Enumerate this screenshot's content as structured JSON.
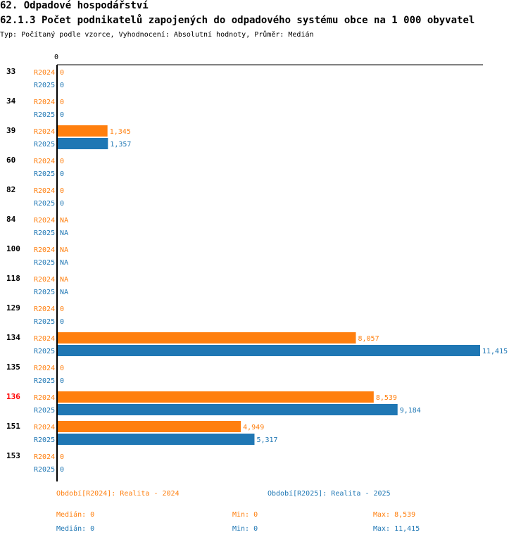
{
  "header": {
    "title": "62. Odpadové hospodářství",
    "subtitle": "62.1.3 Počet podnikatelů zapojených do odpadového systému obce na 1 000 obyvatel",
    "meta": "Typ: Počítaný podle vzorce, Vyhodnocení: Absolutní hodnoty, Průměr: Medián"
  },
  "chart_data": {
    "type": "bar",
    "orientation": "horizontal",
    "x_tick_labels": [
      "0"
    ],
    "xlim": [
      0,
      11415
    ],
    "highlight_color": "#ff0000",
    "series": [
      {
        "name": "R2024",
        "color": "#ff7f0e"
      },
      {
        "name": "R2025",
        "color": "#1f77b4"
      }
    ],
    "groups": [
      {
        "category": "33",
        "highlight": false,
        "values": [
          0,
          0
        ],
        "labels": [
          "0",
          "0"
        ]
      },
      {
        "category": "34",
        "highlight": false,
        "values": [
          0,
          0
        ],
        "labels": [
          "0",
          "0"
        ]
      },
      {
        "category": "39",
        "highlight": false,
        "values": [
          1345,
          1357
        ],
        "labels": [
          "1,345",
          "1,357"
        ]
      },
      {
        "category": "60",
        "highlight": false,
        "values": [
          0,
          0
        ],
        "labels": [
          "0",
          "0"
        ]
      },
      {
        "category": "82",
        "highlight": false,
        "values": [
          0,
          0
        ],
        "labels": [
          "0",
          "0"
        ]
      },
      {
        "category": "84",
        "highlight": false,
        "values": [
          null,
          null
        ],
        "labels": [
          "NA",
          "NA"
        ]
      },
      {
        "category": "100",
        "highlight": false,
        "values": [
          null,
          null
        ],
        "labels": [
          "NA",
          "NA"
        ]
      },
      {
        "category": "118",
        "highlight": false,
        "values": [
          null,
          null
        ],
        "labels": [
          "NA",
          "NA"
        ]
      },
      {
        "category": "129",
        "highlight": false,
        "values": [
          0,
          0
        ],
        "labels": [
          "0",
          "0"
        ]
      },
      {
        "category": "134",
        "highlight": false,
        "values": [
          8057,
          11415
        ],
        "labels": [
          "8,057",
          "11,415"
        ]
      },
      {
        "category": "135",
        "highlight": false,
        "values": [
          0,
          0
        ],
        "labels": [
          "0",
          "0"
        ]
      },
      {
        "category": "136",
        "highlight": true,
        "values": [
          8539,
          9184
        ],
        "labels": [
          "8,539",
          "9,184"
        ]
      },
      {
        "category": "151",
        "highlight": false,
        "values": [
          4949,
          5317
        ],
        "labels": [
          "4,949",
          "5,317"
        ]
      },
      {
        "category": "153",
        "highlight": false,
        "values": [
          0,
          0
        ],
        "labels": [
          "0",
          "0"
        ]
      }
    ]
  },
  "legend": {
    "r2024": {
      "period": "Období[R2024]: Realita - 2024",
      "median": "Medián: 0",
      "min": "Min: 0",
      "max": "Max: 8,539"
    },
    "r2025": {
      "period": "Období[R2025]: Realita - 2025",
      "median": "Medián: 0",
      "min": "Min: 0",
      "max": "Max: 11,415"
    }
  }
}
